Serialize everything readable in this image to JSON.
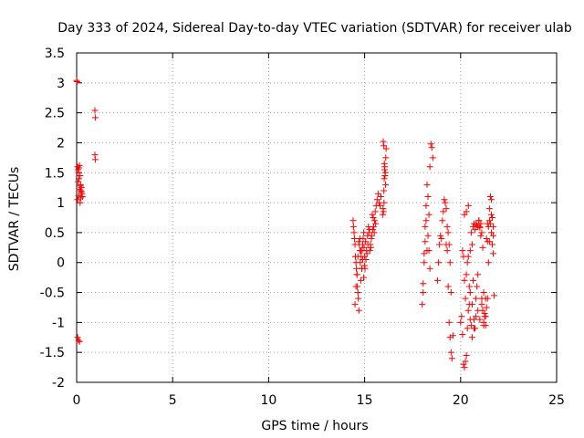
{
  "chart_data": {
    "type": "scatter",
    "title": "Day 333 of 2024, Sidereal Day-to-day VTEC variation (SDTVAR) for receiver ulab",
    "xlabel": "GPS time / hours",
    "ylabel": "SDTVAR / TECUs",
    "xlim": [
      0,
      25
    ],
    "ylim": [
      -2,
      3.5
    ],
    "xticks": [
      0,
      5,
      10,
      15,
      20,
      25
    ],
    "xtick_labels": [
      "0",
      "5",
      "10",
      "15",
      "20",
      "25"
    ],
    "yticks": [
      -2,
      -1.5,
      -1,
      -0.5,
      0,
      0.5,
      1,
      1.5,
      2,
      2.5,
      3,
      3.5
    ],
    "ytick_labels": [
      "-2",
      "-1.5",
      "-1",
      "-0.5",
      "0",
      "0.5",
      "1",
      "1.5",
      "2",
      "2.5",
      "3",
      "3.5"
    ],
    "grid": true,
    "marker": "+",
    "color": "#ff0000",
    "series": [
      {
        "name": "SDTVAR",
        "x": [
          0.0,
          0.02,
          0.05,
          0.08,
          0.1,
          0.12,
          0.15,
          0.18,
          0.2,
          0.22,
          0.25,
          0.28,
          0.3,
          0.05,
          0.1,
          0.15,
          0.2,
          0.25,
          0.08,
          0.12,
          0.18,
          0.22,
          0.05,
          0.1,
          0.15,
          0.95,
          0.97,
          0.95,
          0.97,
          14.4,
          14.45,
          14.5,
          14.55,
          14.6,
          14.65,
          14.7,
          14.75,
          14.8,
          14.85,
          14.9,
          14.95,
          15.0,
          15.05,
          15.1,
          15.15,
          15.2,
          15.25,
          15.3,
          15.35,
          15.4,
          15.45,
          15.5,
          15.55,
          15.6,
          15.65,
          15.7,
          15.75,
          15.8,
          15.85,
          14.42,
          14.47,
          14.52,
          14.57,
          14.62,
          14.67,
          14.72,
          14.77,
          14.82,
          14.87,
          14.92,
          14.97,
          15.02,
          15.07,
          15.12,
          15.17,
          15.22,
          15.27,
          15.32,
          15.37,
          15.42,
          15.47,
          15.52,
          15.57,
          14.5,
          14.55,
          14.6,
          14.65,
          14.7,
          14.75,
          14.8,
          14.85,
          14.9,
          14.95,
          15.0,
          15.95,
          15.98,
          16.0,
          16.02,
          16.05,
          16.08,
          16.1,
          16.12,
          15.97,
          16.0,
          16.03,
          16.06,
          16.09,
          15.96,
          16.01,
          16.04,
          18.0,
          18.05,
          18.1,
          18.15,
          18.2,
          18.25,
          18.3,
          18.35,
          18.4,
          18.45,
          18.5,
          18.55,
          18.3,
          18.35,
          18.4,
          18.05,
          18.1,
          18.15,
          18.2,
          18.25,
          18.8,
          18.85,
          18.9,
          18.95,
          19.0,
          19.05,
          19.1,
          19.15,
          19.2,
          19.25,
          19.3,
          19.35,
          19.4,
          19.45,
          19.5,
          19.55,
          19.6,
          19.35,
          19.4,
          19.45,
          19.3,
          19.25,
          19.5,
          20.0,
          20.05,
          20.1,
          20.15,
          20.2,
          20.25,
          20.3,
          20.35,
          20.4,
          20.45,
          20.5,
          20.55,
          20.6,
          20.65,
          20.7,
          20.75,
          20.8,
          20.85,
          20.9,
          20.95,
          21.0,
          21.05,
          21.1,
          21.15,
          21.2,
          21.25,
          21.3,
          21.35,
          21.4,
          21.45,
          21.5,
          21.55,
          21.6,
          21.65,
          21.7,
          20.1,
          20.15,
          20.2,
          20.25,
          20.3,
          20.35,
          20.4,
          20.45,
          20.5,
          20.55,
          20.6,
          20.65,
          20.7,
          20.75,
          20.8,
          20.85,
          20.9,
          20.95,
          21.0,
          21.05,
          21.1,
          21.15,
          21.2,
          21.25,
          21.3,
          21.35,
          21.4,
          21.45,
          21.5,
          21.55,
          21.6,
          21.65,
          21.7,
          21.75,
          20.2,
          20.3,
          20.4,
          20.5,
          20.6,
          20.7,
          20.8,
          20.9,
          21.0,
          21.1,
          21.2,
          21.3,
          21.4,
          21.5,
          21.6,
          21.7
        ],
        "y": [
          3.04,
          3.02,
          1.6,
          1.55,
          1.5,
          1.58,
          1.62,
          1.45,
          1.3,
          1.2,
          1.25,
          1.15,
          1.1,
          1.05,
          1.12,
          1.22,
          1.28,
          1.18,
          1.35,
          1.4,
          1.0,
          1.08,
          -1.25,
          -1.3,
          -1.32,
          2.54,
          2.42,
          1.8,
          1.72,
          0.7,
          0.5,
          0.3,
          0.0,
          -0.2,
          -0.5,
          -0.8,
          0.4,
          0.2,
          -0.1,
          0.3,
          0.5,
          0.1,
          0.35,
          0.2,
          0.45,
          0.6,
          0.55,
          0.3,
          0.4,
          0.8,
          0.75,
          0.5,
          0.85,
          0.95,
          1.05,
          1.15,
          1.0,
          0.95,
          1.1,
          0.6,
          0.4,
          0.1,
          -0.1,
          -0.4,
          -0.6,
          0.3,
          0.0,
          0.1,
          0.2,
          0.4,
          0.25,
          -0.1,
          0.05,
          0.15,
          0.3,
          0.5,
          0.2,
          0.25,
          0.45,
          0.55,
          0.6,
          0.7,
          0.65,
          -0.7,
          -0.4,
          -0.2,
          0.1,
          0.35,
          0.2,
          -0.3,
          -0.1,
          0.05,
          -0.25,
          -0.05,
          0.8,
          0.85,
          1.2,
          1.4,
          1.6,
          1.5,
          1.75,
          1.9,
          2.02,
          1.95,
          1.65,
          1.45,
          1.3,
          0.9,
          1.0,
          1.55,
          -0.7,
          -0.35,
          0.15,
          0.6,
          0.95,
          1.3,
          1.1,
          0.8,
          1.6,
          1.98,
          1.92,
          1.75,
          0.45,
          0.2,
          -0.1,
          -0.5,
          0.0,
          0.35,
          0.7,
          0.2,
          -0.3,
          0.0,
          0.3,
          0.45,
          0.4,
          0.7,
          0.85,
          1.05,
          1.0,
          0.9,
          0.6,
          -0.4,
          -1.0,
          -1.25,
          -1.5,
          -1.6,
          -1.22,
          0.5,
          0.3,
          0.0,
          0.2,
          0.3,
          -0.5,
          -1.0,
          -0.9,
          -1.2,
          -1.7,
          -1.75,
          -1.65,
          -1.55,
          -1.1,
          -0.8,
          -0.4,
          0.2,
          0.5,
          0.3,
          0.6,
          0.65,
          0.55,
          0.65,
          0.62,
          0.6,
          0.7,
          0.58,
          0.65,
          -0.6,
          -0.8,
          -1.0,
          -0.9,
          -1.05,
          0.4,
          0.35,
          0.6,
          0.9,
          1.1,
          1.05,
          0.75,
          0.45,
          0.2,
          0.1,
          -0.3,
          -0.6,
          -0.2,
          0.0,
          0.1,
          -0.7,
          -0.5,
          -1.05,
          -0.7,
          -0.3,
          -0.95,
          -1.1,
          -0.6,
          -0.4,
          -0.2,
          0.7,
          0.6,
          0.45,
          0.5,
          0.25,
          -1.05,
          -0.85,
          -0.9,
          -0.75,
          -0.6,
          0.0,
          0.35,
          0.65,
          0.8,
          0.3,
          0.15,
          -0.55,
          0.8,
          0.85,
          0.95,
          -0.95,
          -1.25,
          -1.1,
          -0.9,
          -0.8,
          -0.95,
          -0.7,
          -0.5,
          -0.6,
          0.65,
          0.7,
          0.5,
          0.6
        ]
      }
    ]
  }
}
